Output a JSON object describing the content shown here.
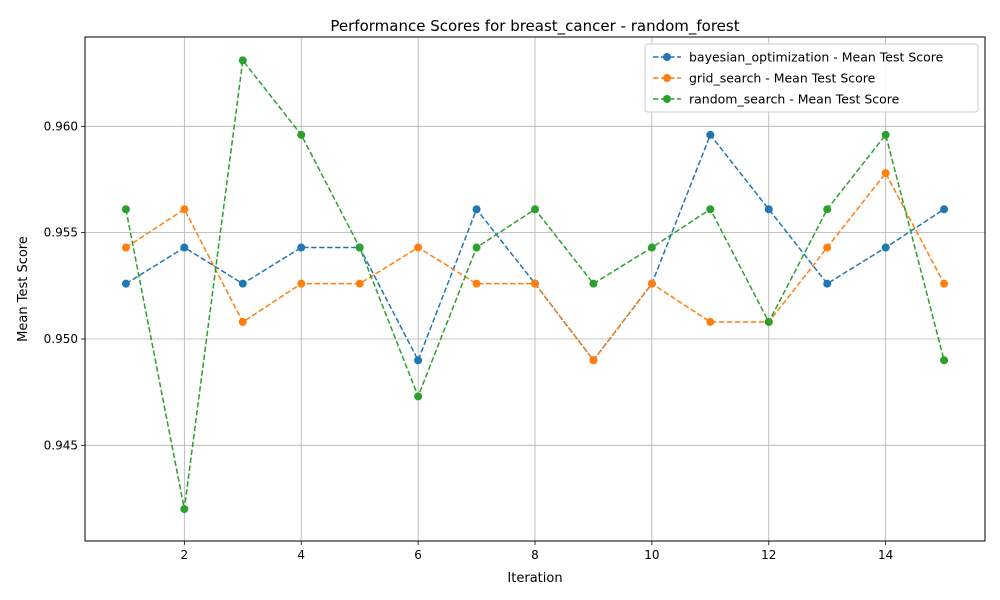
{
  "chart_data": {
    "type": "line",
    "title": "Performance Scores for breast_cancer - random_forest",
    "xlabel": "Iteration",
    "ylabel": "Mean Test Score",
    "x": [
      1,
      2,
      3,
      4,
      5,
      6,
      7,
      8,
      9,
      10,
      11,
      12,
      13,
      14,
      15
    ],
    "xlim": [
      0.3,
      15.7
    ],
    "ylim": [
      0.9405,
      0.9642
    ],
    "xticks": [
      2,
      4,
      6,
      8,
      10,
      12,
      14
    ],
    "yticks": [
      0.945,
      0.95,
      0.955,
      0.96
    ],
    "xtick_labels": [
      "2",
      "4",
      "6",
      "8",
      "10",
      "12",
      "14"
    ],
    "ytick_labels": [
      "0.945",
      "0.950",
      "0.955",
      "0.960"
    ],
    "grid": true,
    "legend_position": "top-right",
    "series": [
      {
        "name": "bayesian_optimization - Mean Test Score",
        "color": "#1f77b4",
        "values": [
          0.9526,
          0.9543,
          0.9526,
          0.9543,
          0.9543,
          0.949,
          0.9561,
          0.9526,
          0.949,
          0.9526,
          0.9596,
          0.9561,
          0.9526,
          0.9543,
          0.9561
        ]
      },
      {
        "name": "grid_search - Mean Test Score",
        "color": "#ff7f0e",
        "values": [
          0.9543,
          0.9561,
          0.9508,
          0.9526,
          0.9526,
          0.9543,
          0.9526,
          0.9526,
          0.949,
          0.9526,
          0.9508,
          0.9508,
          0.9543,
          0.9578,
          0.9526
        ]
      },
      {
        "name": "random_search - Mean Test Score",
        "color": "#2ca02c",
        "values": [
          0.9561,
          0.942,
          0.9631,
          0.9596,
          0.9543,
          0.9473,
          0.9543,
          0.9561,
          0.9526,
          0.9543,
          0.9561,
          0.9508,
          0.9561,
          0.9596,
          0.949
        ]
      }
    ]
  }
}
